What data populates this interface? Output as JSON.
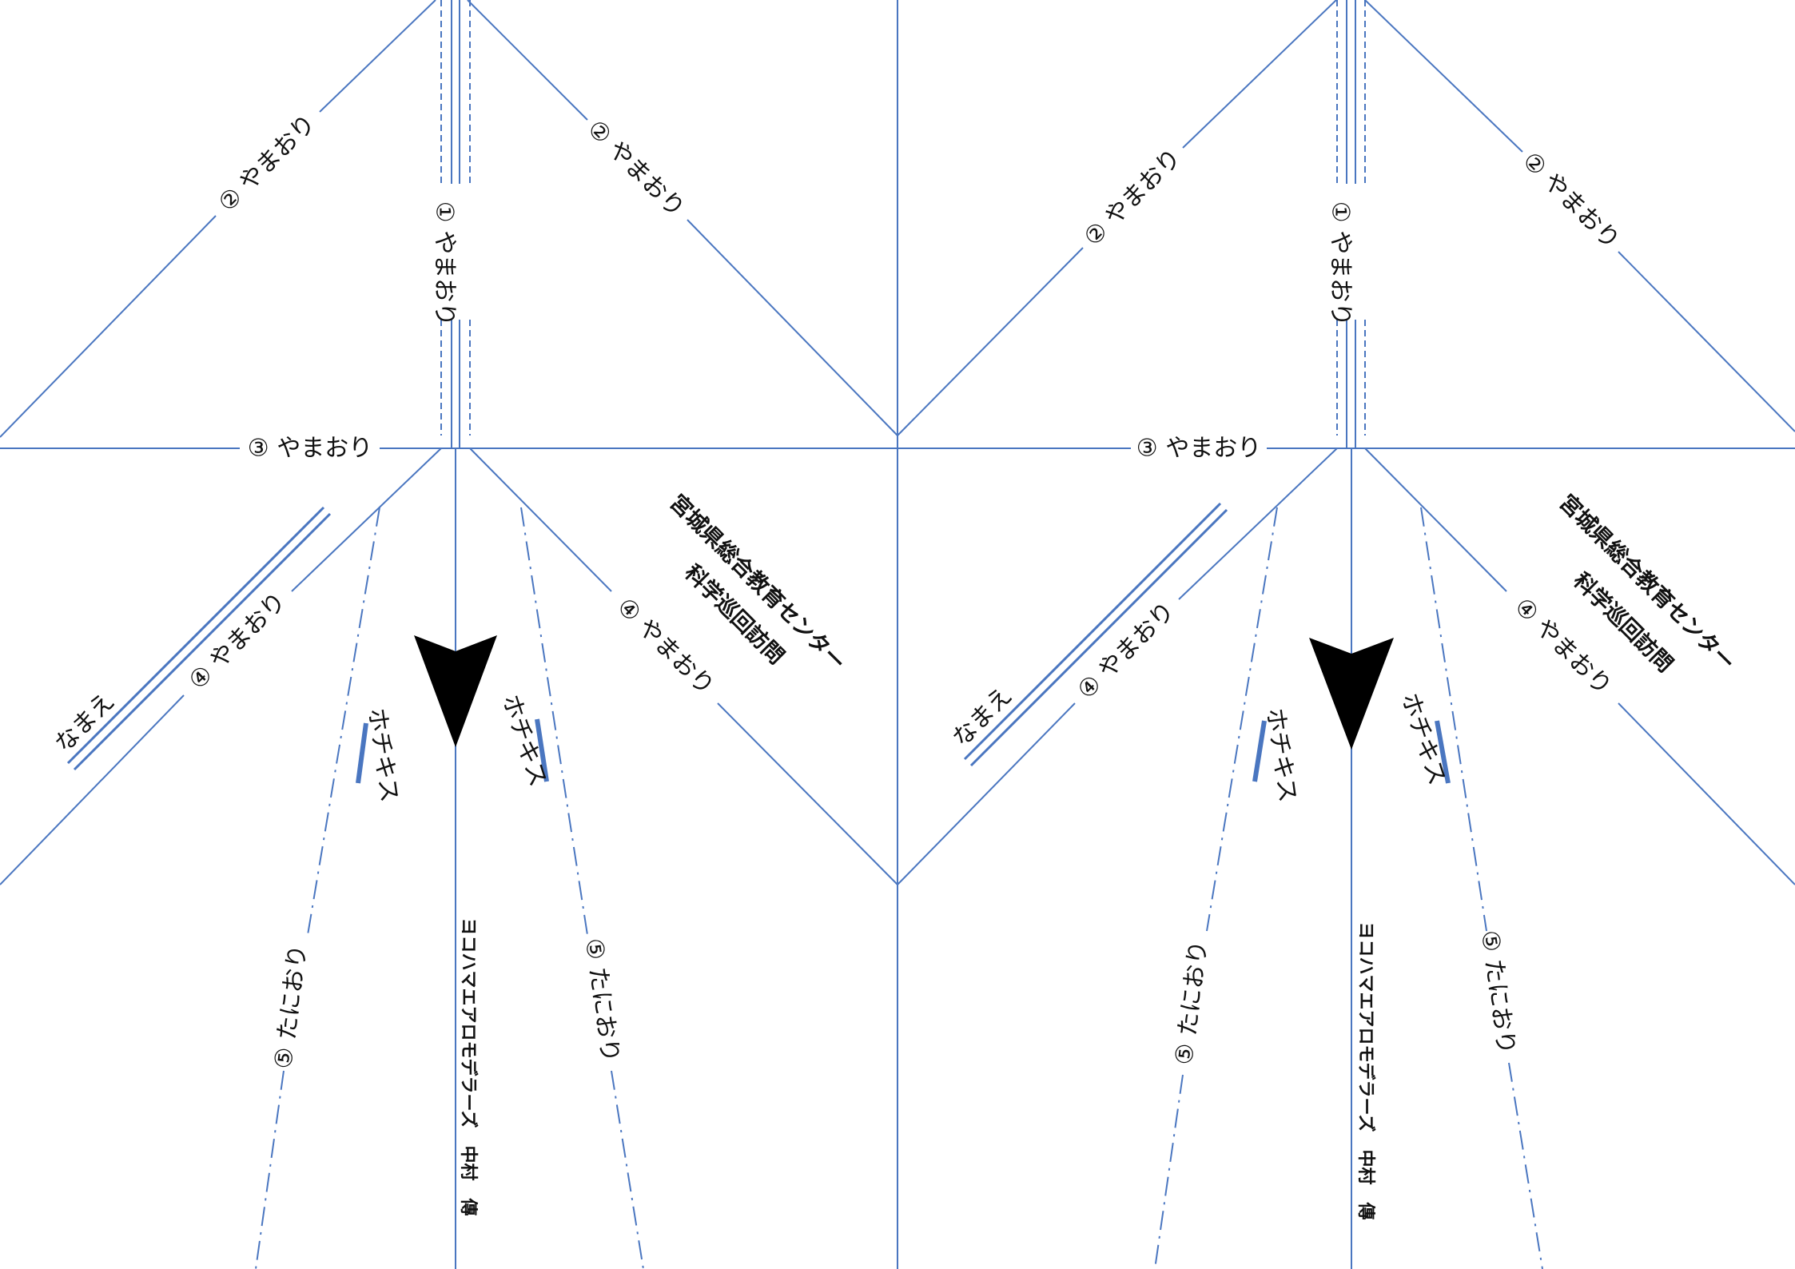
{
  "colors": {
    "line": "#4a76c0",
    "text": "#111111",
    "arrow": "#000000",
    "background": "#ffffff"
  },
  "panels": [
    {
      "fold1": "① やまおり",
      "fold2_left": "② やまおり",
      "fold2_right": "② やまおり",
      "fold3": "③ やまおり",
      "fold4_left": "④ やまおり",
      "fold4_right": "④ やまおり",
      "fold5_left": "⑤ たにおり",
      "fold5_right": "⑤ たにおり",
      "name_label": "なまえ",
      "staple_left": "ホチキス",
      "staple_right": "ホチキス",
      "org_line1": "宮城県総合教育センター",
      "org_line2": "科学巡回訪問",
      "credit": "ヨコハマエアロモデラーズ　中村　傳"
    },
    {
      "fold1": "① やまおり",
      "fold2_left": "② やまおり",
      "fold2_right": "② やまおり",
      "fold3": "③ やまおり",
      "fold4_left": "④ やまおり",
      "fold4_right": "④ やまおり",
      "fold5_left": "⑤ たにおり",
      "fold5_right": "⑤ たにおり",
      "name_label": "なまえ",
      "staple_left": "ホチキス",
      "staple_right": "ホチキス",
      "org_line1": "宮城県総合教育センター",
      "org_line2": "科学巡回訪問",
      "credit": "ヨコハマエアロモデラーズ　中村　傳"
    }
  ]
}
